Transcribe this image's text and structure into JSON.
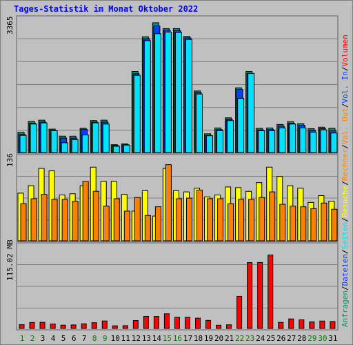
{
  "page": {
    "title": "Tages-Statistik im Monat Oktober 2022",
    "right_legend": [
      "Anfragen",
      "/",
      "Dateien",
      "/",
      "Seiten",
      "/",
      "Besuche",
      "/",
      "Rechner",
      "/",
      "Vol. Out",
      "/",
      "Vol. In",
      "/",
      "Volumen"
    ]
  },
  "colors": {
    "background": "#c0c0c0",
    "title": "#0000ff",
    "hits": "#009966",
    "files": "#0040ff",
    "pages": "#00e0ff",
    "visits": "#ffff00",
    "sites": "#ff8000",
    "volume": "#ff0000",
    "weekend_label": "#008000",
    "weekday_label": "#000000"
  },
  "chart_data": [
    {
      "type": "bar",
      "panel": "top",
      "y_max_label": "3365",
      "ylim": [
        0,
        3365
      ],
      "series": [
        {
          "name": "Anfragen",
          "values": [
            520,
            800,
            830,
            600,
            420,
            420,
            620,
            820,
            830,
            200,
            220,
            2080,
            2970,
            3330,
            3180,
            3180,
            2980,
            1580,
            480,
            630,
            890,
            1660,
            2080,
            620,
            630,
            720,
            790,
            740,
            610,
            650,
            620
          ]
        },
        {
          "name": "Dateien",
          "values": [
            470,
            750,
            780,
            570,
            370,
            370,
            590,
            780,
            780,
            180,
            200,
            2020,
            2920,
            3250,
            3140,
            3130,
            2940,
            1540,
            440,
            590,
            850,
            1620,
            2030,
            580,
            590,
            680,
            750,
            700,
            570,
            610,
            560
          ]
        },
        {
          "name": "Seiten",
          "values": [
            440,
            730,
            760,
            560,
            250,
            330,
            450,
            760,
            730,
            160,
            190,
            1980,
            2870,
            3050,
            3090,
            3080,
            2900,
            1500,
            430,
            560,
            820,
            1390,
            2030,
            560,
            560,
            630,
            730,
            630,
            520,
            580,
            500
          ]
        }
      ]
    },
    {
      "type": "bar",
      "panel": "middle",
      "y_max_label": "136",
      "ylim": [
        0,
        136
      ],
      "series": [
        {
          "name": "Besuche",
          "values": [
            77,
            89,
            117,
            113,
            74,
            76,
            89,
            119,
            96,
            96,
            75,
            48,
            81,
            40,
            117,
            81,
            79,
            85,
            71,
            74,
            87,
            86,
            80,
            94,
            119,
            104,
            89,
            85,
            62,
            73,
            64
          ]
        },
        {
          "name": "Rechner",
          "values": [
            60,
            68,
            75,
            67,
            67,
            64,
            96,
            80,
            56,
            68,
            48,
            70,
            41,
            55,
            123,
            68,
            69,
            82,
            68,
            68,
            60,
            67,
            67,
            70,
            79,
            59,
            56,
            55,
            52,
            61,
            51
          ]
        }
      ]
    },
    {
      "type": "bar",
      "panel": "bottom",
      "y_max_label": "115.02 MB",
      "ylim": [
        0,
        115.02
      ],
      "series": [
        {
          "name": "Volumen",
          "values": [
            5.2,
            8.2,
            8.4,
            6.1,
            4.5,
            4.8,
            6.3,
            7.8,
            10.2,
            3.6,
            3.8,
            10.8,
            16.5,
            16.4,
            20.0,
            15.2,
            15.2,
            14.0,
            11.0,
            4.4,
            5.0,
            43.9,
            90.0,
            90.1,
            100.4,
            8.3,
            13.0,
            11.8,
            9.0,
            10.1,
            9.5
          ]
        }
      ],
      "categories": [
        "1",
        "2",
        "3",
        "4",
        "5",
        "6",
        "7",
        "8",
        "9",
        "10",
        "11",
        "12",
        "13",
        "14",
        "15",
        "16",
        "17",
        "18",
        "19",
        "20",
        "21",
        "22",
        "23",
        "24",
        "25",
        "26",
        "27",
        "28",
        "29",
        "30",
        "31"
      ],
      "weekend_days": [
        "1",
        "2",
        "8",
        "9",
        "15",
        "16",
        "22",
        "23",
        "29",
        "30"
      ]
    }
  ]
}
